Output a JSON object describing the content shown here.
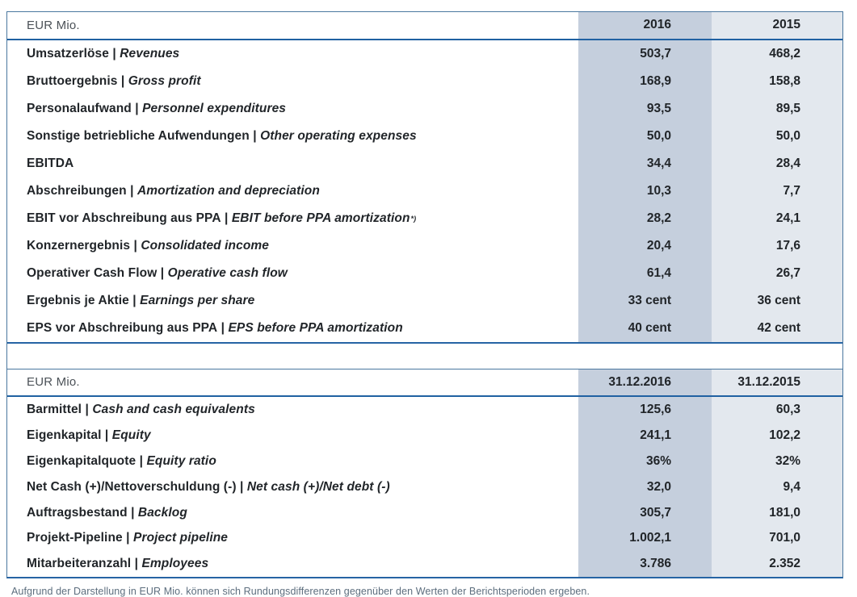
{
  "separator": " | ",
  "colors": {
    "col_2016_bg": "#c5cfdd",
    "col_2015_bg": "#e3e8ee",
    "outer_border": "#4a779f",
    "header_rule": "#2061a2",
    "label_text": "#212529",
    "header_text": "#4b5157",
    "footnote_text": "#5d6e7e"
  },
  "table1": {
    "header": {
      "label": "EUR Mio.",
      "col1": "2016",
      "col2": "2015"
    },
    "rows": [
      {
        "de": "Umsatzerlöse",
        "en": "Revenues",
        "v1": "503,7",
        "v2": "468,2"
      },
      {
        "de": "Bruttoergebnis",
        "en": "Gross profit",
        "v1": "168,9",
        "v2": "158,8"
      },
      {
        "de": "Personalaufwand",
        "en": "Personnel expenditures",
        "v1": "93,5",
        "v2": "89,5"
      },
      {
        "de": "Sonstige betriebliche Aufwendungen",
        "en": "Other operating expenses",
        "v1": "50,0",
        "v2": "50,0"
      },
      {
        "de": "EBITDA",
        "en": "",
        "v1": "34,4",
        "v2": "28,4"
      },
      {
        "de": "Abschreibungen",
        "en": "Amortization and depreciation",
        "v1": "10,3",
        "v2": "7,7"
      },
      {
        "de": "EBIT vor Abschreibung aus PPA",
        "en": "EBIT before PPA amortization",
        "sup": "*)",
        "v1": "28,2",
        "v2": "24,1"
      },
      {
        "de": "Konzernergebnis",
        "en": "Consolidated income",
        "v1": "20,4",
        "v2": "17,6"
      },
      {
        "de": "Operativer Cash Flow",
        "en": "Operative cash flow",
        "v1": "61,4",
        "v2": "26,7"
      },
      {
        "de": "Ergebnis je Aktie ",
        "en": "Earnings per share",
        "v1": "33 cent",
        "v2": "36 cent"
      },
      {
        "de": "EPS vor Abschreibung aus PPA",
        "en": "EPS before PPA amortization",
        "v1": "40 cent",
        "v2": "42 cent"
      }
    ]
  },
  "table2": {
    "header": {
      "label": "EUR Mio.",
      "col1": "31.12.2016",
      "col2": "31.12.2015"
    },
    "rows": [
      {
        "de": "Barmittel",
        "en": "Cash and cash equivalents",
        "v1": "125,6",
        "v2": "60,3"
      },
      {
        "de": "Eigenkapital",
        "en": "Equity",
        "v1": "241,1",
        "v2": "102,2"
      },
      {
        "de": "Eigenkapitalquote",
        "en": "Equity ratio",
        "v1": "36%",
        "v2": "32%"
      },
      {
        "de": "Net Cash (+)/Nettoverschuldung (-)",
        "en": "Net cash (+)/Net debt (-)",
        "v1": "32,0",
        "v2": "9,4"
      },
      {
        "de": "Auftragsbestand",
        "en": "Backlog",
        "v1": "305,7",
        "v2": "181,0"
      },
      {
        "de": "Projekt-Pipeline",
        "en": "Project pipeline",
        "v1": "1.002,1",
        "v2": "701,0"
      },
      {
        "de": "Mitarbeiteranzahl",
        "en": "Employees",
        "v1": "3.786",
        "v2": "2.352"
      }
    ]
  },
  "footnote": "Aufgrund der Darstellung in EUR Mio. können sich Rundungsdifferenzen gegenüber den Werten der Berichtsperioden ergeben."
}
